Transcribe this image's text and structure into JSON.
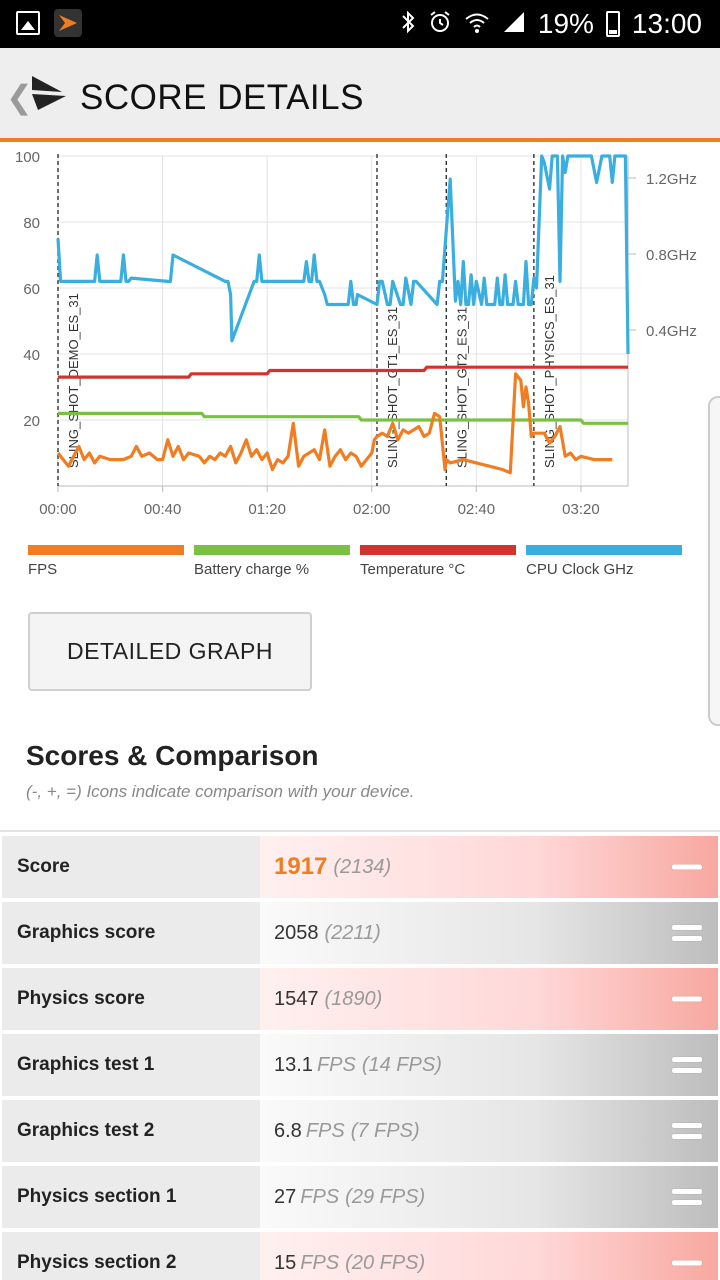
{
  "status_bar": {
    "battery_percent": "19%",
    "time": "13:00",
    "icons": [
      "gallery-icon",
      "app-icon",
      "bluetooth-icon",
      "alarm-icon",
      "wifi-icon",
      "signal-icon",
      "battery-icon"
    ]
  },
  "header": {
    "title": "SCORE DETAILS",
    "back_glyph": "❮"
  },
  "chart_data": {
    "type": "line",
    "xlabel": "",
    "ylabel": "",
    "x_unit": "seconds",
    "xlim": [
      0,
      218
    ],
    "ylim": [
      0,
      100
    ],
    "x_ticks": [
      {
        "value": 0,
        "label": "00:00"
      },
      {
        "value": 40,
        "label": "00:40"
      },
      {
        "value": 80,
        "label": "01:20"
      },
      {
        "value": 120,
        "label": "02:00"
      },
      {
        "value": 160,
        "label": "02:40"
      },
      {
        "value": 200,
        "label": "03:20"
      }
    ],
    "y_ticks": [
      20,
      40,
      60,
      80,
      100
    ],
    "y2_ticks": [
      {
        "value": 0.4,
        "label": "0.4GHz"
      },
      {
        "value": 0.8,
        "label": "0.8GHz"
      },
      {
        "value": 1.2,
        "label": "1.2GHz"
      }
    ],
    "grid": true,
    "markers": [
      {
        "x": 0,
        "label": "SLING_SHOT_DEMO_ES_31"
      },
      {
        "x": 122,
        "label": "SLING_SHOT_GT1_ES_31"
      },
      {
        "x": 148.5,
        "label": "SLING_SHOT_GT2_ES_31"
      },
      {
        "x": 182,
        "label": "SLING_SHOT_PHYSICS_ES_31"
      }
    ],
    "series": [
      {
        "name": "FPS",
        "color": "#f07d21",
        "x": [
          0,
          2,
          4,
          6,
          8,
          10,
          12,
          14,
          16,
          20,
          25,
          28,
          30,
          32,
          35,
          38,
          40,
          42,
          44,
          46,
          48,
          50,
          54,
          56,
          58,
          60,
          62,
          64,
          66,
          68,
          70,
          72,
          74,
          76,
          78,
          80,
          82,
          84,
          86,
          88,
          90,
          92,
          94,
          96,
          98,
          100,
          102,
          104,
          106,
          108,
          110,
          112,
          114,
          116,
          118,
          120,
          121,
          122,
          124,
          126,
          128,
          130,
          132,
          134,
          136,
          138,
          140,
          142,
          144,
          146,
          148,
          148.5,
          150,
          155,
          160,
          165,
          170,
          173,
          175,
          177,
          178,
          179,
          180,
          181,
          182,
          184,
          186,
          188,
          190,
          192,
          194,
          196,
          198,
          200,
          205,
          212
        ],
        "y": [
          10,
          8,
          6,
          9,
          12,
          8,
          10,
          7,
          9,
          8,
          8,
          9,
          12,
          9,
          10,
          8,
          8,
          14,
          9,
          12,
          8,
          10,
          9,
          7,
          9,
          8,
          10,
          9,
          12,
          7,
          10,
          14,
          9,
          11,
          8,
          10,
          5,
          8,
          7,
          9,
          19,
          6,
          9,
          10,
          11,
          8,
          17,
          6,
          9,
          11,
          8,
          10,
          9,
          6,
          8,
          10,
          14,
          15,
          16,
          15,
          19,
          14,
          17,
          16,
          17,
          18,
          15,
          16,
          22,
          21,
          5,
          8,
          7,
          8,
          7,
          6,
          5,
          4,
          34,
          32,
          24,
          30,
          25,
          15,
          16,
          16,
          16,
          13,
          15,
          18,
          9,
          10,
          8,
          9,
          8,
          8
        ]
      },
      {
        "name": "Battery charge %",
        "color": "#7ac143",
        "x": [
          0,
          55,
          56,
          115,
          116,
          140,
          141,
          150,
          151,
          200,
          201,
          218
        ],
        "y": [
          22,
          22,
          21,
          21,
          20,
          20,
          20,
          20,
          20,
          20,
          19,
          19
        ]
      },
      {
        "name": "Temperature °C",
        "color": "#d2332e",
        "x": [
          0,
          20,
          21,
          50,
          51,
          80,
          81,
          110,
          111,
          140,
          141,
          170,
          171,
          200,
          201,
          218
        ],
        "y": [
          33,
          33,
          33,
          33,
          34,
          34,
          35,
          35,
          35,
          35,
          36,
          36,
          36,
          36,
          36,
          36
        ]
      },
      {
        "name": "CPU Clock GHz",
        "color": "#3aaedf",
        "x": [
          0,
          1,
          2,
          14,
          15,
          16,
          24,
          25,
          26,
          27,
          28,
          42,
          43,
          44,
          64,
          65,
          66,
          66.5,
          75,
          76,
          77,
          78,
          94,
          95,
          96,
          97,
          98,
          99,
          100,
          102,
          103,
          104,
          110,
          111,
          112,
          113,
          114,
          114.5,
          122,
          123,
          124,
          126,
          127,
          128,
          131,
          132,
          133,
          135,
          136,
          137,
          145,
          146,
          147,
          150,
          152,
          153,
          154,
          155,
          156,
          157,
          158,
          159,
          160,
          162,
          163,
          164,
          166,
          167,
          168,
          169,
          170,
          171,
          172,
          174,
          175,
          176,
          178,
          179,
          180,
          181,
          182,
          183,
          185,
          186,
          187,
          188,
          189,
          190,
          191,
          192,
          193,
          194,
          195,
          196,
          197,
          199,
          200,
          201,
          203,
          204,
          206,
          208,
          209,
          211,
          212,
          213,
          214,
          215,
          216,
          217,
          218
        ],
        "y": [
          75,
          62,
          62,
          62,
          70,
          62,
          62,
          70,
          62,
          62,
          63,
          62,
          62,
          70,
          62,
          62,
          58,
          44,
          62,
          62,
          70,
          62,
          62,
          68,
          62,
          62,
          70,
          62,
          62,
          58,
          55,
          55,
          55,
          55,
          62,
          55,
          55,
          58,
          55,
          62,
          62,
          55,
          55,
          62,
          55,
          55,
          63,
          55,
          62,
          62,
          55,
          62,
          62,
          93,
          56,
          62,
          55,
          68,
          55,
          55,
          64,
          55,
          62,
          55,
          63,
          55,
          55,
          55,
          63,
          55,
          55,
          64,
          55,
          55,
          62,
          55,
          55,
          68,
          55,
          55,
          63,
          60,
          100,
          98,
          94,
          90,
          100,
          100,
          100,
          62,
          100,
          95,
          100,
          100,
          100,
          100,
          100,
          100,
          100,
          100,
          92,
          100,
          100,
          100,
          92,
          100,
          100,
          100,
          100,
          100,
          40
        ]
      }
    ]
  },
  "legend": [
    {
      "label": "FPS",
      "color": "#f07d21"
    },
    {
      "label": "Battery charge %",
      "color": "#7ac143"
    },
    {
      "label": "Temperature °C",
      "color": "#d2332e"
    },
    {
      "label": "CPU Clock GHz",
      "color": "#3aaedf"
    }
  ],
  "detailed_graph_button": "DETAILED GRAPH",
  "scores": {
    "title": "Scores & Comparison",
    "subtitle": "(-, +, =) Icons indicate comparison with your device.",
    "rows": [
      {
        "label": "Score",
        "value": "1917",
        "unit": "",
        "compare": "(2134)",
        "comparison": "minus"
      },
      {
        "label": "Graphics score",
        "value": "2058",
        "unit": "",
        "compare": "(2211)",
        "comparison": "equal"
      },
      {
        "label": "Physics score",
        "value": "1547",
        "unit": "",
        "compare": "(1890)",
        "comparison": "minus"
      },
      {
        "label": "Graphics test 1",
        "value": "13.1",
        "unit": "FPS",
        "compare": "(14 FPS)",
        "comparison": "equal"
      },
      {
        "label": "Graphics test 2",
        "value": "6.8",
        "unit": "FPS",
        "compare": "(7 FPS)",
        "comparison": "equal"
      },
      {
        "label": "Physics section 1",
        "value": "27",
        "unit": "FPS",
        "compare": "(29 FPS)",
        "comparison": "equal"
      },
      {
        "label": "Physics section 2",
        "value": "15",
        "unit": "FPS",
        "compare": "(20 FPS)",
        "comparison": "minus"
      }
    ]
  }
}
